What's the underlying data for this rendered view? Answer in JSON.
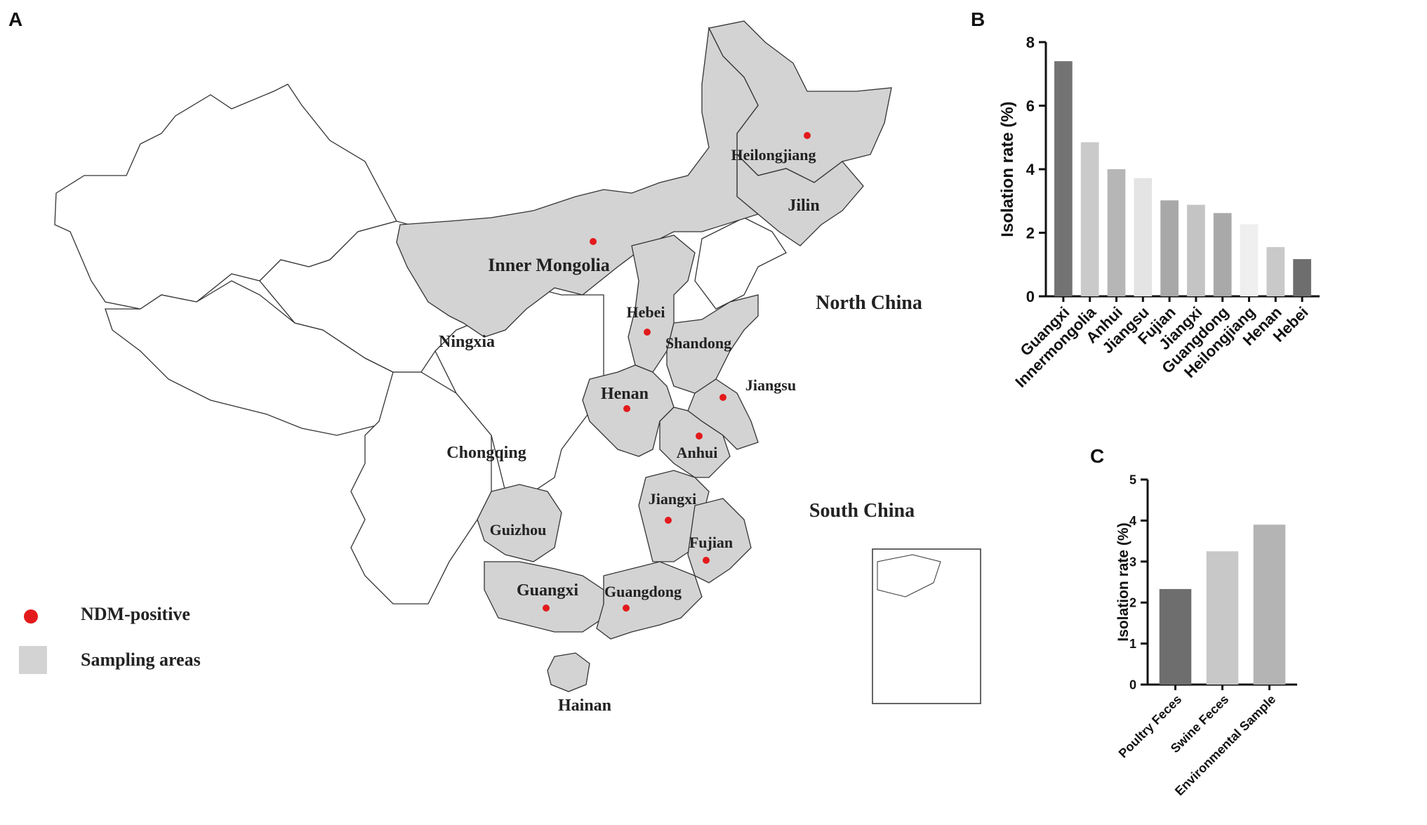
{
  "panels": {
    "a": "A",
    "b": "B",
    "c": "C"
  },
  "map": {
    "regions": [
      {
        "name": "Heilongjiang",
        "label": "Heilongjiang",
        "positive": true
      },
      {
        "name": "Jilin",
        "label": "Jilin",
        "positive": false
      },
      {
        "name": "Inner Mongolia",
        "label": "Inner Mongolia",
        "positive": true
      },
      {
        "name": "Hebei",
        "label": "Hebei",
        "positive": true
      },
      {
        "name": "Shandong",
        "label": "Shandong",
        "positive": false
      },
      {
        "name": "Jiangsu",
        "label": "Jiangsu",
        "positive": true
      },
      {
        "name": "Henan",
        "label": "Henan",
        "positive": true
      },
      {
        "name": "Anhui",
        "label": "Anhui",
        "positive": true
      },
      {
        "name": "Ningxia",
        "label": "Ningxia",
        "positive": false
      },
      {
        "name": "Chongqing",
        "label": "Chongqing",
        "positive": false
      },
      {
        "name": "Jiangxi",
        "label": "Jiangxi",
        "positive": true
      },
      {
        "name": "Guizhou",
        "label": "Guizhou",
        "positive": false
      },
      {
        "name": "Fujian",
        "label": "Fujian",
        "positive": true
      },
      {
        "name": "Guangxi",
        "label": "Guangxi",
        "positive": true
      },
      {
        "name": "Guangdong",
        "label": "Guangdong",
        "positive": true
      },
      {
        "name": "Hainan",
        "label": "Hainan",
        "positive": false
      }
    ],
    "area_labels": {
      "north": "North China",
      "south": "South China"
    },
    "legend": {
      "positive": "NDM-positive",
      "sampling": "Sampling areas"
    },
    "colors": {
      "sampling": "#d3d3d3",
      "positive": "#e31a1c",
      "outline": "#333333"
    }
  },
  "chart_data": [
    {
      "type": "bar",
      "panel": "B",
      "categories": [
        "Guangxi",
        "Innermongolia",
        "Anhui",
        "Jiangsu",
        "Fujian",
        "Jiangxi",
        "Guangdong",
        "Heilongjiang",
        "Henan",
        "Hebei"
      ],
      "values": [
        7.4,
        4.85,
        4.0,
        3.72,
        3.02,
        2.88,
        2.62,
        2.27,
        1.55,
        1.17
      ],
      "colors": [
        "#737373",
        "#cacaca",
        "#b6b6b6",
        "#e4e4e4",
        "#a8a8a8",
        "#c4c4c4",
        "#a9a9a9",
        "#efefef",
        "#c9c9c9",
        "#6e6e6e"
      ],
      "ylabel": "Isolation rate (%)",
      "ylim": [
        0,
        8
      ],
      "yticks": [
        0,
        2,
        4,
        6,
        8
      ]
    },
    {
      "type": "bar",
      "panel": "C",
      "categories": [
        "Poultry Feces",
        "Swine Feces",
        "Environmental Sample"
      ],
      "values": [
        2.33,
        3.25,
        3.9
      ],
      "colors": [
        "#6e6e6e",
        "#c8c8c8",
        "#b4b4b4"
      ],
      "ylabel": "Isolation rate (%)",
      "ylim": [
        0,
        5
      ],
      "yticks": [
        0,
        1,
        2,
        3,
        4,
        5
      ]
    }
  ]
}
